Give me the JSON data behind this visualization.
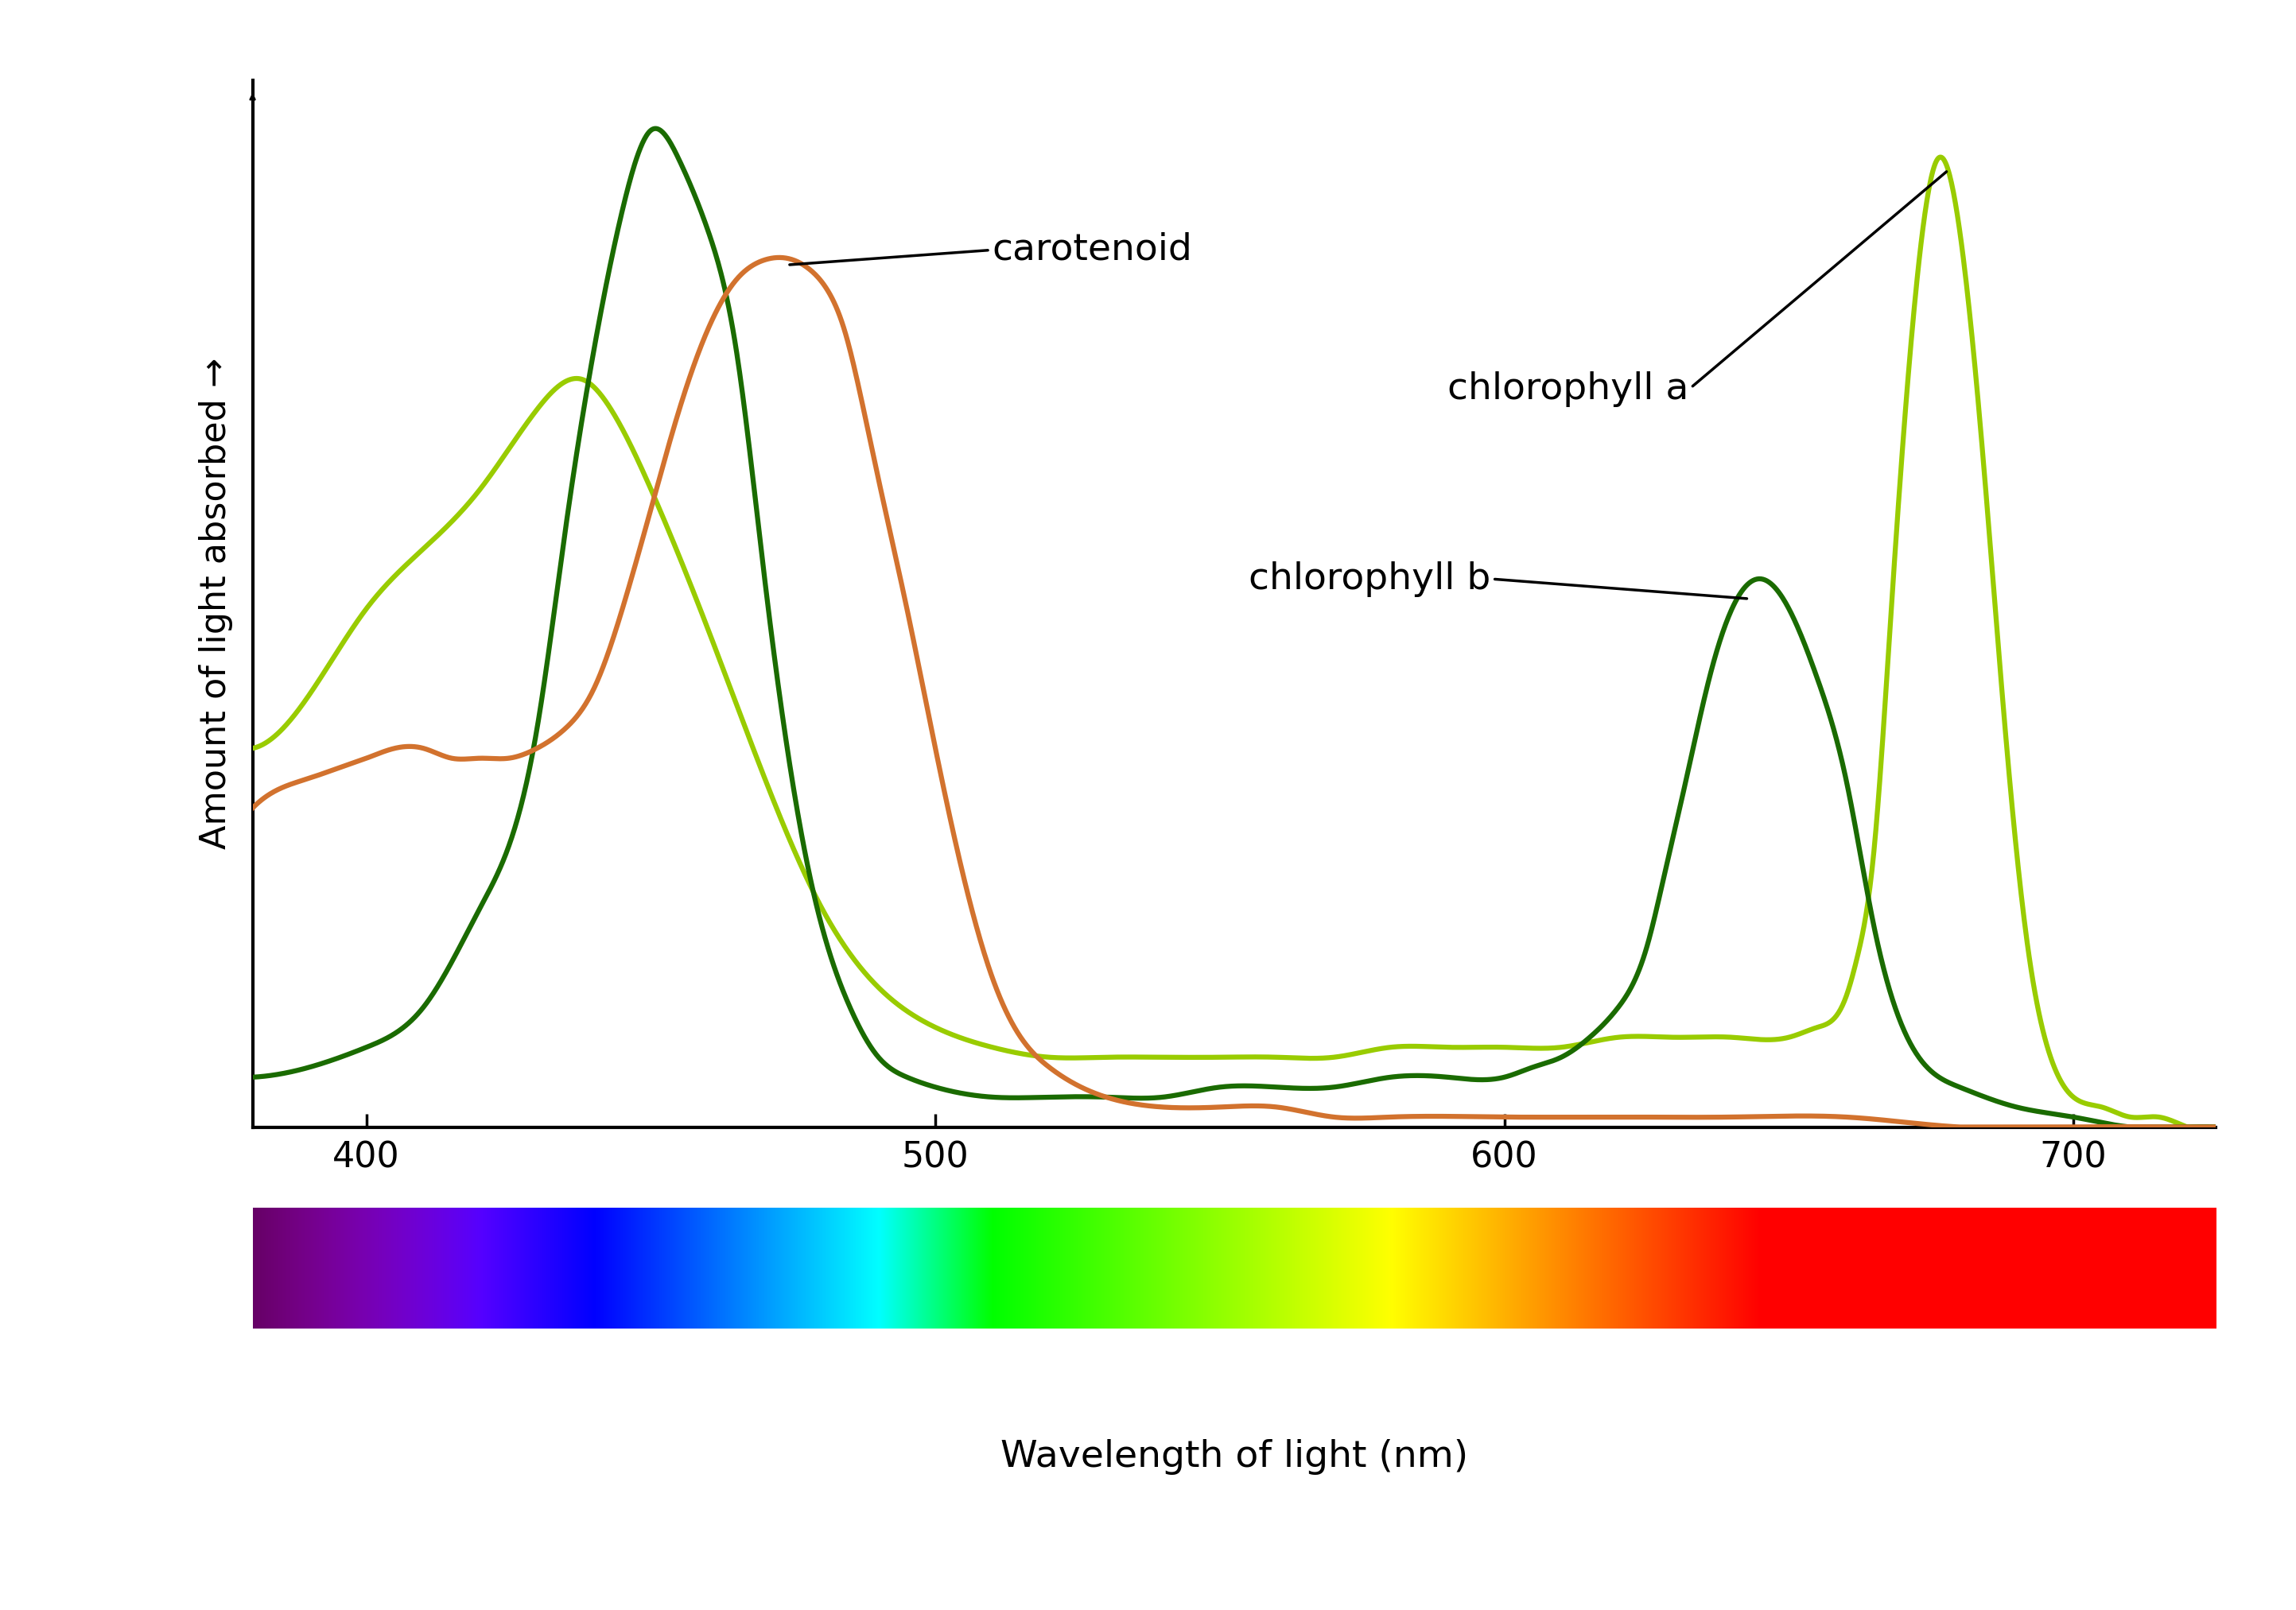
{
  "ylabel": "Amount of light absorbed →",
  "xlabel": "Wavelength of light (nm)",
  "xlim": [
    380,
    725
  ],
  "ylim": [
    0,
    1.05
  ],
  "xticks": [
    400,
    500,
    600,
    700
  ],
  "background_color": "#ffffff",
  "line_width": 4.5,
  "ylabel_fontsize": 32,
  "xlabel_fontsize": 34,
  "tick_fontsize": 32,
  "annotation_fontsize": 34,
  "chlorophyll_a_color": "#99cc00",
  "chlorophyll_b_color": "#1a6b00",
  "carotenoid_color": "#d2722e",
  "chlorophyll_a_x": [
    380,
    393,
    400,
    410,
    420,
    425,
    430,
    438,
    443,
    450,
    460,
    470,
    480,
    490,
    500,
    510,
    520,
    530,
    540,
    550,
    560,
    570,
    580,
    590,
    600,
    610,
    620,
    630,
    640,
    650,
    655,
    660,
    662,
    665,
    668,
    672,
    676,
    680,
    684,
    688,
    692,
    696,
    700,
    705,
    710,
    715,
    720,
    725
  ],
  "chlorophyll_a_y": [
    0.38,
    0.46,
    0.52,
    0.58,
    0.64,
    0.68,
    0.72,
    0.75,
    0.72,
    0.64,
    0.5,
    0.35,
    0.22,
    0.14,
    0.1,
    0.08,
    0.07,
    0.07,
    0.07,
    0.07,
    0.07,
    0.07,
    0.08,
    0.08,
    0.08,
    0.08,
    0.09,
    0.09,
    0.09,
    0.09,
    0.1,
    0.13,
    0.17,
    0.28,
    0.52,
    0.82,
    0.97,
    0.9,
    0.68,
    0.4,
    0.18,
    0.07,
    0.03,
    0.02,
    0.01,
    0.01,
    0.0,
    0.0
  ],
  "chlorophyll_b_x": [
    380,
    390,
    400,
    410,
    420,
    430,
    435,
    440,
    445,
    450,
    455,
    460,
    465,
    470,
    478,
    485,
    490,
    495,
    500,
    510,
    520,
    530,
    540,
    550,
    560,
    570,
    580,
    590,
    600,
    605,
    610,
    615,
    620,
    625,
    628,
    632,
    636,
    640,
    645,
    650,
    655,
    660,
    665,
    670,
    680,
    690,
    700,
    710,
    720,
    725
  ],
  "chlorophyll_b_y": [
    0.05,
    0.06,
    0.08,
    0.12,
    0.22,
    0.4,
    0.6,
    0.78,
    0.92,
    1.0,
    0.97,
    0.9,
    0.78,
    0.55,
    0.25,
    0.12,
    0.07,
    0.05,
    0.04,
    0.03,
    0.03,
    0.03,
    0.03,
    0.04,
    0.04,
    0.04,
    0.05,
    0.05,
    0.05,
    0.06,
    0.07,
    0.09,
    0.12,
    0.18,
    0.25,
    0.35,
    0.45,
    0.52,
    0.55,
    0.52,
    0.45,
    0.35,
    0.2,
    0.1,
    0.04,
    0.02,
    0.01,
    0.0,
    0.0,
    0.0
  ],
  "carotenoid_x": [
    380,
    385,
    390,
    395,
    400,
    405,
    410,
    415,
    420,
    425,
    430,
    435,
    440,
    445,
    450,
    455,
    460,
    465,
    470,
    475,
    478,
    481,
    484,
    487,
    490,
    495,
    500,
    505,
    510,
    515,
    520,
    530,
    540,
    550,
    560,
    570,
    580,
    600,
    620,
    640,
    660,
    680,
    700,
    720,
    725
  ],
  "carotenoid_y": [
    0.32,
    0.34,
    0.35,
    0.36,
    0.37,
    0.38,
    0.38,
    0.37,
    0.37,
    0.37,
    0.38,
    0.4,
    0.44,
    0.52,
    0.62,
    0.72,
    0.8,
    0.85,
    0.87,
    0.87,
    0.86,
    0.84,
    0.8,
    0.73,
    0.65,
    0.52,
    0.38,
    0.25,
    0.15,
    0.09,
    0.06,
    0.03,
    0.02,
    0.02,
    0.02,
    0.01,
    0.01,
    0.01,
    0.01,
    0.01,
    0.01,
    0.0,
    0.0,
    0.0,
    0.0
  ]
}
